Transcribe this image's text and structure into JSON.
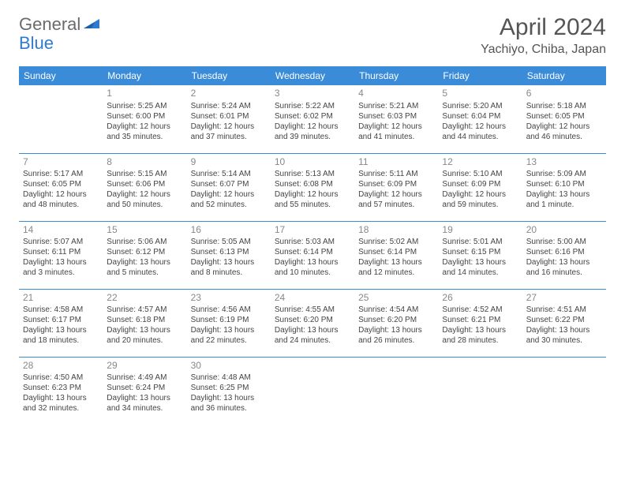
{
  "logo": {
    "text1": "General",
    "text2": "Blue"
  },
  "title": "April 2024",
  "location": "Yachiyo, Chiba, Japan",
  "colors": {
    "header_bg": "#3a8bd8",
    "header_fg": "#ffffff",
    "row_border": "#3a8bd8",
    "logo_gray": "#6b6b6b",
    "logo_blue": "#2f7ad0"
  },
  "day_headers": [
    "Sunday",
    "Monday",
    "Tuesday",
    "Wednesday",
    "Thursday",
    "Friday",
    "Saturday"
  ],
  "weeks": [
    [
      {
        "n": "",
        "sr": "",
        "ss": "",
        "dl": ""
      },
      {
        "n": "1",
        "sr": "Sunrise: 5:25 AM",
        "ss": "Sunset: 6:00 PM",
        "dl": "Daylight: 12 hours and 35 minutes."
      },
      {
        "n": "2",
        "sr": "Sunrise: 5:24 AM",
        "ss": "Sunset: 6:01 PM",
        "dl": "Daylight: 12 hours and 37 minutes."
      },
      {
        "n": "3",
        "sr": "Sunrise: 5:22 AM",
        "ss": "Sunset: 6:02 PM",
        "dl": "Daylight: 12 hours and 39 minutes."
      },
      {
        "n": "4",
        "sr": "Sunrise: 5:21 AM",
        "ss": "Sunset: 6:03 PM",
        "dl": "Daylight: 12 hours and 41 minutes."
      },
      {
        "n": "5",
        "sr": "Sunrise: 5:20 AM",
        "ss": "Sunset: 6:04 PM",
        "dl": "Daylight: 12 hours and 44 minutes."
      },
      {
        "n": "6",
        "sr": "Sunrise: 5:18 AM",
        "ss": "Sunset: 6:05 PM",
        "dl": "Daylight: 12 hours and 46 minutes."
      }
    ],
    [
      {
        "n": "7",
        "sr": "Sunrise: 5:17 AM",
        "ss": "Sunset: 6:05 PM",
        "dl": "Daylight: 12 hours and 48 minutes."
      },
      {
        "n": "8",
        "sr": "Sunrise: 5:15 AM",
        "ss": "Sunset: 6:06 PM",
        "dl": "Daylight: 12 hours and 50 minutes."
      },
      {
        "n": "9",
        "sr": "Sunrise: 5:14 AM",
        "ss": "Sunset: 6:07 PM",
        "dl": "Daylight: 12 hours and 52 minutes."
      },
      {
        "n": "10",
        "sr": "Sunrise: 5:13 AM",
        "ss": "Sunset: 6:08 PM",
        "dl": "Daylight: 12 hours and 55 minutes."
      },
      {
        "n": "11",
        "sr": "Sunrise: 5:11 AM",
        "ss": "Sunset: 6:09 PM",
        "dl": "Daylight: 12 hours and 57 minutes."
      },
      {
        "n": "12",
        "sr": "Sunrise: 5:10 AM",
        "ss": "Sunset: 6:09 PM",
        "dl": "Daylight: 12 hours and 59 minutes."
      },
      {
        "n": "13",
        "sr": "Sunrise: 5:09 AM",
        "ss": "Sunset: 6:10 PM",
        "dl": "Daylight: 13 hours and 1 minute."
      }
    ],
    [
      {
        "n": "14",
        "sr": "Sunrise: 5:07 AM",
        "ss": "Sunset: 6:11 PM",
        "dl": "Daylight: 13 hours and 3 minutes."
      },
      {
        "n": "15",
        "sr": "Sunrise: 5:06 AM",
        "ss": "Sunset: 6:12 PM",
        "dl": "Daylight: 13 hours and 5 minutes."
      },
      {
        "n": "16",
        "sr": "Sunrise: 5:05 AM",
        "ss": "Sunset: 6:13 PM",
        "dl": "Daylight: 13 hours and 8 minutes."
      },
      {
        "n": "17",
        "sr": "Sunrise: 5:03 AM",
        "ss": "Sunset: 6:14 PM",
        "dl": "Daylight: 13 hours and 10 minutes."
      },
      {
        "n": "18",
        "sr": "Sunrise: 5:02 AM",
        "ss": "Sunset: 6:14 PM",
        "dl": "Daylight: 13 hours and 12 minutes."
      },
      {
        "n": "19",
        "sr": "Sunrise: 5:01 AM",
        "ss": "Sunset: 6:15 PM",
        "dl": "Daylight: 13 hours and 14 minutes."
      },
      {
        "n": "20",
        "sr": "Sunrise: 5:00 AM",
        "ss": "Sunset: 6:16 PM",
        "dl": "Daylight: 13 hours and 16 minutes."
      }
    ],
    [
      {
        "n": "21",
        "sr": "Sunrise: 4:58 AM",
        "ss": "Sunset: 6:17 PM",
        "dl": "Daylight: 13 hours and 18 minutes."
      },
      {
        "n": "22",
        "sr": "Sunrise: 4:57 AM",
        "ss": "Sunset: 6:18 PM",
        "dl": "Daylight: 13 hours and 20 minutes."
      },
      {
        "n": "23",
        "sr": "Sunrise: 4:56 AM",
        "ss": "Sunset: 6:19 PM",
        "dl": "Daylight: 13 hours and 22 minutes."
      },
      {
        "n": "24",
        "sr": "Sunrise: 4:55 AM",
        "ss": "Sunset: 6:20 PM",
        "dl": "Daylight: 13 hours and 24 minutes."
      },
      {
        "n": "25",
        "sr": "Sunrise: 4:54 AM",
        "ss": "Sunset: 6:20 PM",
        "dl": "Daylight: 13 hours and 26 minutes."
      },
      {
        "n": "26",
        "sr": "Sunrise: 4:52 AM",
        "ss": "Sunset: 6:21 PM",
        "dl": "Daylight: 13 hours and 28 minutes."
      },
      {
        "n": "27",
        "sr": "Sunrise: 4:51 AM",
        "ss": "Sunset: 6:22 PM",
        "dl": "Daylight: 13 hours and 30 minutes."
      }
    ],
    [
      {
        "n": "28",
        "sr": "Sunrise: 4:50 AM",
        "ss": "Sunset: 6:23 PM",
        "dl": "Daylight: 13 hours and 32 minutes."
      },
      {
        "n": "29",
        "sr": "Sunrise: 4:49 AM",
        "ss": "Sunset: 6:24 PM",
        "dl": "Daylight: 13 hours and 34 minutes."
      },
      {
        "n": "30",
        "sr": "Sunrise: 4:48 AM",
        "ss": "Sunset: 6:25 PM",
        "dl": "Daylight: 13 hours and 36 minutes."
      },
      {
        "n": "",
        "sr": "",
        "ss": "",
        "dl": ""
      },
      {
        "n": "",
        "sr": "",
        "ss": "",
        "dl": ""
      },
      {
        "n": "",
        "sr": "",
        "ss": "",
        "dl": ""
      },
      {
        "n": "",
        "sr": "",
        "ss": "",
        "dl": ""
      }
    ]
  ]
}
